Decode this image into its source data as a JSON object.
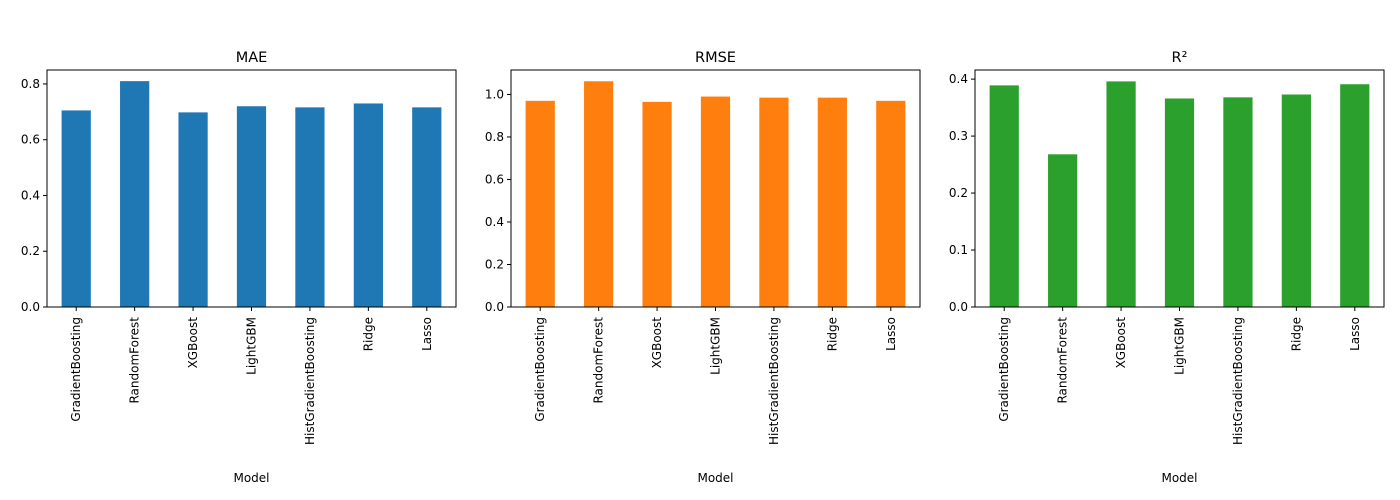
{
  "chart_data": [
    {
      "type": "bar",
      "title": "MAE",
      "xlabel": "Model",
      "ylabel": "",
      "color": "#1f77b4",
      "categories": [
        "GradientBoosting",
        "RandomForest",
        "XGBoost",
        "LightGBM",
        "HistGradientBoosting",
        "Ridge",
        "Lasso"
      ],
      "values": [
        0.705,
        0.81,
        0.698,
        0.72,
        0.716,
        0.73,
        0.716
      ],
      "ylim": [
        0,
        0.85
      ],
      "yticks": [
        0.0,
        0.2,
        0.4,
        0.6,
        0.8
      ],
      "ytick_labels": [
        "0.0",
        "0.2",
        "0.4",
        "0.6",
        "0.8"
      ],
      "grid": false,
      "legend": false
    },
    {
      "type": "bar",
      "title": "RMSE",
      "xlabel": "Model",
      "ylabel": "",
      "color": "#ff7f0e",
      "categories": [
        "GradientBoosting",
        "RandomForest",
        "XGBoost",
        "LightGBM",
        "HistGradientBoosting",
        "Ridge",
        "Lasso"
      ],
      "values": [
        0.97,
        1.062,
        0.965,
        0.99,
        0.985,
        0.985,
        0.97
      ],
      "ylim": [
        0,
        1.115
      ],
      "yticks": [
        0.0,
        0.2,
        0.4,
        0.6,
        0.8,
        1.0
      ],
      "ytick_labels": [
        "0.0",
        "0.2",
        "0.4",
        "0.6",
        "0.8",
        "1.0"
      ],
      "grid": false,
      "legend": false
    },
    {
      "type": "bar",
      "title": "R²",
      "xlabel": "Model",
      "ylabel": "",
      "color": "#2ca02c",
      "categories": [
        "GradientBoosting",
        "RandomForest",
        "XGBoost",
        "LightGBM",
        "HistGradientBoosting",
        "Ridge",
        "Lasso"
      ],
      "values": [
        0.389,
        0.268,
        0.396,
        0.366,
        0.368,
        0.373,
        0.391
      ],
      "ylim": [
        0,
        0.416
      ],
      "yticks": [
        0.0,
        0.1,
        0.2,
        0.3,
        0.4
      ],
      "ytick_labels": [
        "0.0",
        "0.1",
        "0.2",
        "0.3",
        "0.4"
      ],
      "grid": false,
      "legend": false
    }
  ]
}
